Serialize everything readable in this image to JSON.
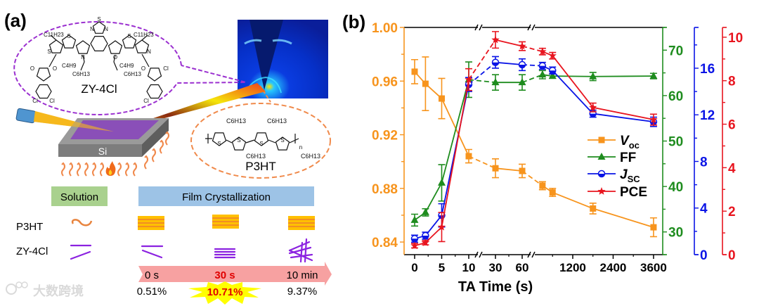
{
  "panel_a": {
    "label": "(a)",
    "molecule_acceptor": "ZY-4Cl",
    "molecule_donor": "P3HT",
    "substrate": "Si",
    "acceptor_atoms": [
      "S",
      "N",
      "N",
      "S",
      "S",
      "S",
      "N",
      "N",
      "O",
      "O",
      "O",
      "O",
      "Cl",
      "Cl",
      "Cl",
      "Cl"
    ],
    "acceptor_substituents": [
      "C11H23",
      "C11H23",
      "C4H9",
      "C6H13",
      "C4H9",
      "C6H13"
    ],
    "donor_atoms": [
      "S",
      "S",
      "S",
      "S",
      "n"
    ],
    "donor_substituents": [
      "C6H13",
      "C6H13",
      "C6H13",
      "C6H13"
    ],
    "stage_solution": "Solution",
    "stage_film": "Film Crystallization",
    "row_p3ht": "P3HT",
    "row_zy": "ZY-4Cl",
    "times": [
      "0 s",
      "30 s",
      "10 min"
    ],
    "pce": [
      "0.51%",
      "10.71%",
      "9.37%"
    ],
    "watermark": "大数跨境"
  },
  "chart_data": {
    "type": "line",
    "panel_label": "(b)",
    "xlabel": "TA Time (s)",
    "x": [
      0,
      2,
      5,
      10,
      30,
      60,
      300,
      600,
      1800,
      3600
    ],
    "x_axis_breaks": [
      [
        10,
        30
      ],
      [
        60,
        300
      ]
    ],
    "xticks": [
      0,
      5,
      10,
      30,
      60,
      1200,
      2400,
      3600
    ],
    "xtick_labels": [
      "0",
      "5",
      "10",
      "30",
      "60",
      "1200",
      "2400",
      "3600"
    ],
    "grid": false,
    "legend_position": "center-right",
    "series": [
      {
        "key": "voc",
        "name": "V",
        "sub": "oc",
        "color": "#f7941d",
        "marker": "square",
        "axis": "left",
        "ylim": [
          0.8306,
          1.0
        ],
        "ticks": [
          0.84,
          0.88,
          0.92,
          0.96,
          1.0
        ],
        "tick_labels": [
          "0.84",
          "0.88",
          "0.92",
          "0.96",
          "1.00"
        ],
        "values": [
          0.967,
          0.958,
          0.947,
          0.904,
          0.895,
          0.893,
          0.882,
          0.877,
          0.865,
          0.851
        ],
        "errors": [
          0.009,
          0.02,
          0.015,
          0.005,
          0.007,
          0.005,
          0.003,
          0.003,
          0.004,
          0.007
        ]
      },
      {
        "key": "ff",
        "name": "FF",
        "sub": "",
        "color": "#1e8c1e",
        "marker": "triangle",
        "axis": "right1",
        "ylim": [
          25,
          75
        ],
        "ticks": [
          30,
          40,
          50,
          60,
          70
        ],
        "tick_labels": [
          "30",
          "40",
          "50",
          "60",
          "70"
        ],
        "values": [
          32.6,
          34.3,
          40.8,
          63.5,
          62.9,
          62.9,
          64.6,
          64.3,
          64.2,
          64.3
        ],
        "errors": [
          1.3,
          0.8,
          4.0,
          3.9,
          1.7,
          1.7,
          0.9,
          0.5,
          0.9,
          0.6
        ]
      },
      {
        "key": "jsc",
        "name": "J",
        "sub": "SC",
        "color": "#0a14e6",
        "marker": "circle",
        "axis": "right2",
        "ylim": [
          0,
          19.5
        ],
        "ticks": [
          0,
          4,
          8,
          12,
          16
        ],
        "tick_labels": [
          "0",
          "4",
          "8",
          "12",
          "16"
        ],
        "values": [
          1.37,
          1.63,
          3.37,
          14.6,
          16.5,
          16.3,
          16.2,
          15.8,
          12.1,
          11.4
        ],
        "errors": [
          0.3,
          0.3,
          1.0,
          0.6,
          0.5,
          0.5,
          0.3,
          0.3,
          0.3,
          0.4
        ]
      },
      {
        "key": "pce",
        "name": "PCE",
        "sub": "",
        "color": "#e8141e",
        "marker": "star",
        "axis": "right3",
        "ylim": [
          0,
          10.45
        ],
        "ticks": [
          0,
          2,
          4,
          6,
          8,
          10
        ],
        "tick_labels": [
          "0",
          "2",
          "4",
          "6",
          "8",
          "10"
        ],
        "values": [
          0.41,
          0.55,
          1.27,
          8.05,
          9.88,
          9.59,
          9.34,
          9.15,
          6.77,
          6.21
        ],
        "errors": [
          0.1,
          0.1,
          0.67,
          0.5,
          0.38,
          0.2,
          0.15,
          0.15,
          0.2,
          0.25
        ]
      }
    ]
  }
}
